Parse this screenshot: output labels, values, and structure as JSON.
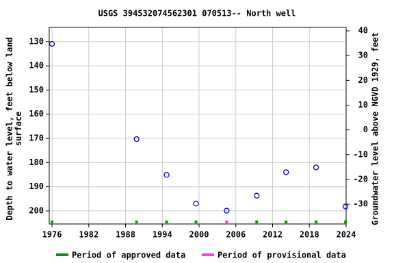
{
  "chart_data": {
    "type": "scatter",
    "title": "USGS 394532074562301 070513-- North well",
    "y_label": "Depth to water level, feet below land\nsurface",
    "y2_label": "Groundwater level above NGVD 1929, feet",
    "xlim": [
      1975.55,
      2024
    ],
    "xticks": [
      1976,
      1982,
      1988,
      1994,
      2000,
      2006,
      2012,
      2018,
      2024
    ],
    "ylim": [
      124.1,
      205.4
    ],
    "yticks": [
      130,
      140,
      150,
      160,
      170,
      180,
      190,
      200
    ],
    "y_inverted": true,
    "y2lim": [
      -38.0,
      41.4
    ],
    "y2ticks": [
      -30,
      -20,
      -10,
      0,
      10,
      20,
      30,
      40
    ],
    "grid": true,
    "series": [
      {
        "color": "#0000cc",
        "x": [
          1976.0,
          1989.8,
          1994.7,
          1999.5,
          2004.5,
          2009.4,
          2014.2,
          2019.1,
          2023.9
        ],
        "values": [
          130.9,
          170.3,
          185.1,
          197.0,
          199.9,
          193.7,
          184.0,
          182.0,
          198.2
        ]
      }
    ],
    "periods": [
      {
        "name": "Period of approved data",
        "color": "#009900",
        "x": [
          1976.0,
          1989.8,
          1994.7,
          1999.5,
          2009.4,
          2014.2,
          2019.1,
          2023.9
        ]
      },
      {
        "name": "Period of provisional data",
        "color": "#ff33ff",
        "x": [
          2004.5
        ]
      }
    ]
  }
}
